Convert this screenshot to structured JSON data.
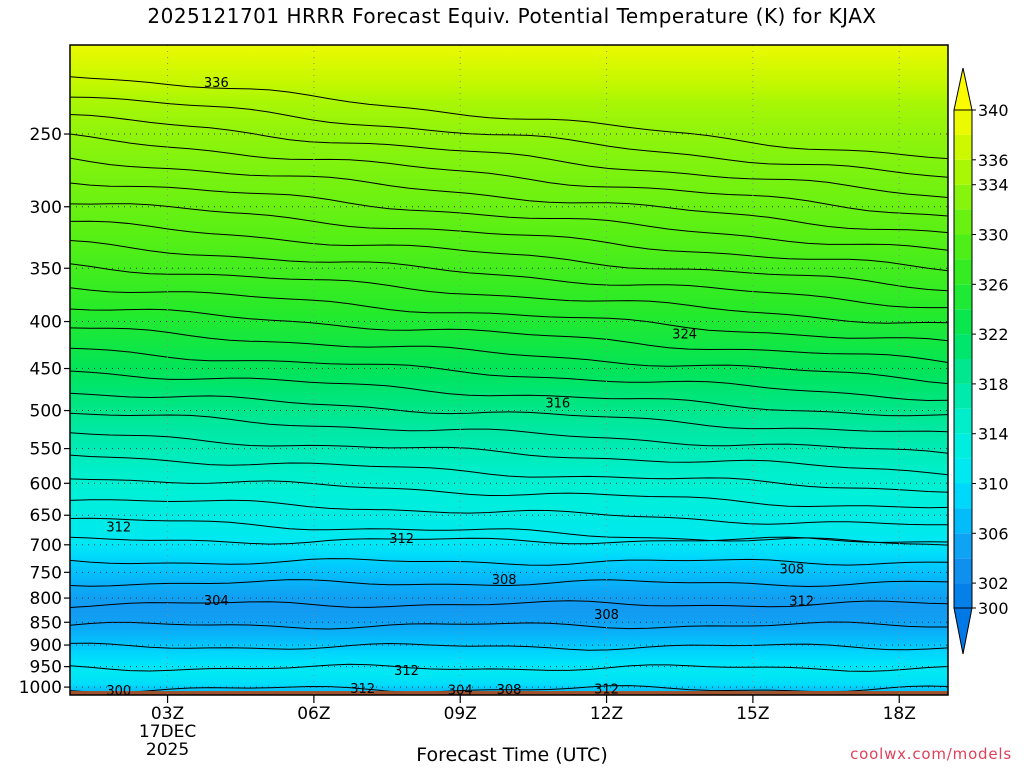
{
  "chart_data": {
    "type": "heatmap",
    "title": "2025121701 HRRR Forecast Equiv. Potential Temperature (K) for KJAX",
    "xlabel": "Forecast Time (UTC)",
    "ylabel": "",
    "x_ticks": [
      "03Z",
      "06Z",
      "09Z",
      "12Z",
      "15Z",
      "18Z"
    ],
    "x_ticks_hours": [
      3,
      6,
      9,
      12,
      15,
      18
    ],
    "date_label": [
      "17DEC",
      "2025"
    ],
    "xlim_hours": [
      1,
      19
    ],
    "y_ticks": [
      250,
      300,
      350,
      400,
      450,
      500,
      550,
      600,
      650,
      700,
      750,
      800,
      850,
      900,
      950,
      1000
    ],
    "ylim": [
      1020,
      200
    ],
    "y_scale": "log-pressure",
    "grid": true,
    "colorbar": {
      "levels": [
        300,
        302,
        304,
        306,
        308,
        310,
        312,
        314,
        316,
        318,
        320,
        322,
        324,
        326,
        328,
        330,
        332,
        334,
        336,
        338,
        340
      ],
      "labels": [
        300,
        302,
        306,
        310,
        314,
        318,
        322,
        326,
        330,
        334,
        336,
        340
      ],
      "extend": "both",
      "placement": "right"
    },
    "contour_labels": [
      {
        "text": "336",
        "hour": 4.0,
        "pressure": 220
      },
      {
        "text": "324",
        "hour": 13.6,
        "pressure": 413
      },
      {
        "text": "316",
        "hour": 11.0,
        "pressure": 491
      },
      {
        "text": "312",
        "hour": 2.0,
        "pressure": 670
      },
      {
        "text": "312",
        "hour": 7.8,
        "pressure": 690
      },
      {
        "text": "308",
        "hour": 9.9,
        "pressure": 765
      },
      {
        "text": "308",
        "hour": 15.8,
        "pressure": 745
      },
      {
        "text": "304",
        "hour": 4.0,
        "pressure": 806
      },
      {
        "text": "312",
        "hour": 16.0,
        "pressure": 807
      },
      {
        "text": "308",
        "hour": 12.0,
        "pressure": 835
      },
      {
        "text": "312",
        "hour": 7.9,
        "pressure": 960
      },
      {
        "text": "300",
        "hour": 2.0,
        "pressure": 1010
      },
      {
        "text": "312",
        "hour": 7.0,
        "pressure": 1005
      },
      {
        "text": "304",
        "hour": 9.0,
        "pressure": 1008
      },
      {
        "text": "308",
        "hour": 10.0,
        "pressure": 1007
      },
      {
        "text": "312",
        "hour": 12.0,
        "pressure": 1006
      }
    ],
    "theta_e_profile": [
      {
        "pressure": 200,
        "value": 339
      },
      {
        "pressure": 230,
        "value": 335
      },
      {
        "pressure": 260,
        "value": 333
      },
      {
        "pressure": 320,
        "value": 330
      },
      {
        "pressure": 370,
        "value": 327
      },
      {
        "pressure": 420,
        "value": 324
      },
      {
        "pressure": 470,
        "value": 321
      },
      {
        "pressure": 520,
        "value": 318
      },
      {
        "pressure": 580,
        "value": 315
      },
      {
        "pressure": 640,
        "value": 313
      },
      {
        "pressure": 690,
        "value": 311
      },
      {
        "pressure": 740,
        "value": 308
      },
      {
        "pressure": 790,
        "value": 305
      },
      {
        "pressure": 830,
        "value": 304
      },
      {
        "pressure": 870,
        "value": 306
      },
      {
        "pressure": 920,
        "value": 309
      },
      {
        "pressure": 970,
        "value": 311
      },
      {
        "pressure": 1000,
        "value": 309
      },
      {
        "pressure": 1015,
        "value": 306
      }
    ],
    "ground_color": "#a0522d"
  },
  "credit": "coolwx.com/models"
}
